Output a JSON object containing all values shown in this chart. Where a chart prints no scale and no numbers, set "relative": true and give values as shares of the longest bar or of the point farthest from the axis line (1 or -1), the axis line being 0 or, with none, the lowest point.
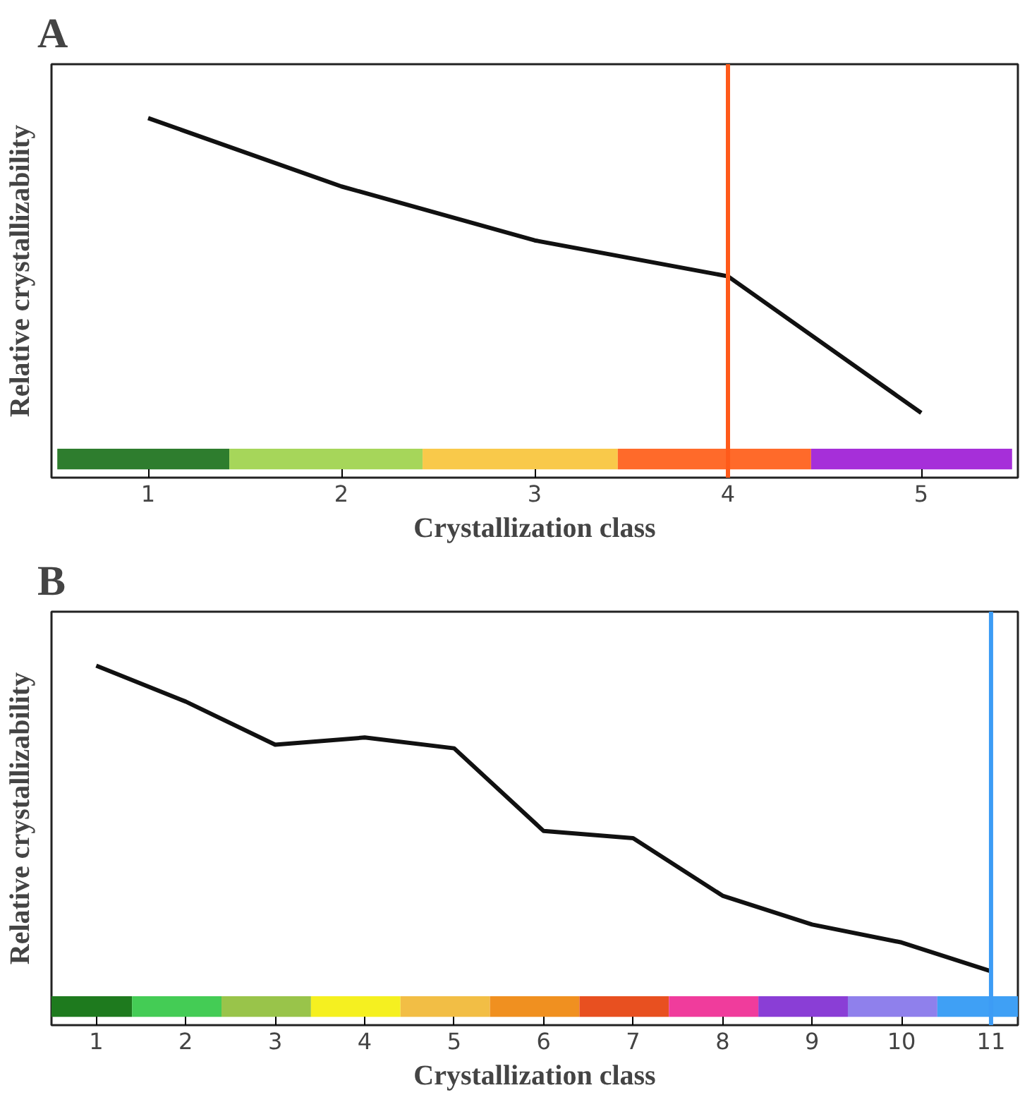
{
  "chart_data": [
    {
      "type": "line",
      "title": "A",
      "xlabel": "Crystallization class",
      "ylabel": "Relative crystallizability",
      "relative": true,
      "x": [
        1,
        2,
        3,
        4,
        5
      ],
      "xlim": [
        0.5,
        5.5
      ],
      "xticks": [
        1,
        2,
        3,
        4,
        5
      ],
      "grid": false,
      "series": [
        {
          "color": "#111111",
          "values": [
            1,
            0.81,
            0.66,
            0.56,
            0.18
          ]
        }
      ],
      "ref_lines": [
        {
          "axis": "x",
          "value": 4,
          "color": "#ff5a1a"
        }
      ],
      "bands": [
        {
          "axis": "x",
          "from": 0.53,
          "to": 1.42,
          "color": "#2e7d2e"
        },
        {
          "axis": "x",
          "from": 1.42,
          "to": 2.42,
          "color": "#a6d65a"
        },
        {
          "axis": "x",
          "from": 2.42,
          "to": 3.43,
          "color": "#f9c94a"
        },
        {
          "axis": "x",
          "from": 3.43,
          "to": 4.43,
          "color": "#ff6a2a"
        },
        {
          "axis": "x",
          "from": 4.43,
          "to": 5.47,
          "color": "#a62fd9"
        }
      ]
    },
    {
      "type": "line",
      "title": "B",
      "xlabel": "Crystallization class",
      "ylabel": "Relative crystallizability",
      "relative": true,
      "x": [
        1,
        2,
        3,
        4,
        5,
        6,
        7,
        8,
        9,
        10,
        11
      ],
      "xlim": [
        0.5,
        11.3
      ],
      "xticks": [
        1,
        2,
        3,
        4,
        5,
        6,
        7,
        8,
        9,
        10,
        11
      ],
      "grid": false,
      "series": [
        {
          "color": "#111111",
          "values": [
            1,
            0.9,
            0.78,
            0.8,
            0.77,
            0.54,
            0.52,
            0.36,
            0.28,
            0.23,
            0.15
          ]
        }
      ],
      "ref_lines": [
        {
          "axis": "x",
          "value": 11,
          "color": "#3d9cf5"
        }
      ],
      "bands": [
        {
          "axis": "x",
          "from": 0.5,
          "to": 1.4,
          "color": "#1e7a1e"
        },
        {
          "axis": "x",
          "from": 1.4,
          "to": 2.4,
          "color": "#44cc55"
        },
        {
          "axis": "x",
          "from": 2.4,
          "to": 3.4,
          "color": "#99c44a"
        },
        {
          "axis": "x",
          "from": 3.4,
          "to": 4.4,
          "color": "#f5f020"
        },
        {
          "axis": "x",
          "from": 4.4,
          "to": 5.4,
          "color": "#f2be45"
        },
        {
          "axis": "x",
          "from": 5.4,
          "to": 6.4,
          "color": "#f09020"
        },
        {
          "axis": "x",
          "from": 6.4,
          "to": 7.4,
          "color": "#e85020"
        },
        {
          "axis": "x",
          "from": 7.4,
          "to": 8.4,
          "color": "#f03c9c"
        },
        {
          "axis": "x",
          "from": 8.4,
          "to": 9.4,
          "color": "#8a3ed6"
        },
        {
          "axis": "x",
          "from": 9.4,
          "to": 10.4,
          "color": "#8f80ec"
        },
        {
          "axis": "x",
          "from": 10.4,
          "to": 11.3,
          "color": "#3fa0f5"
        }
      ]
    }
  ]
}
